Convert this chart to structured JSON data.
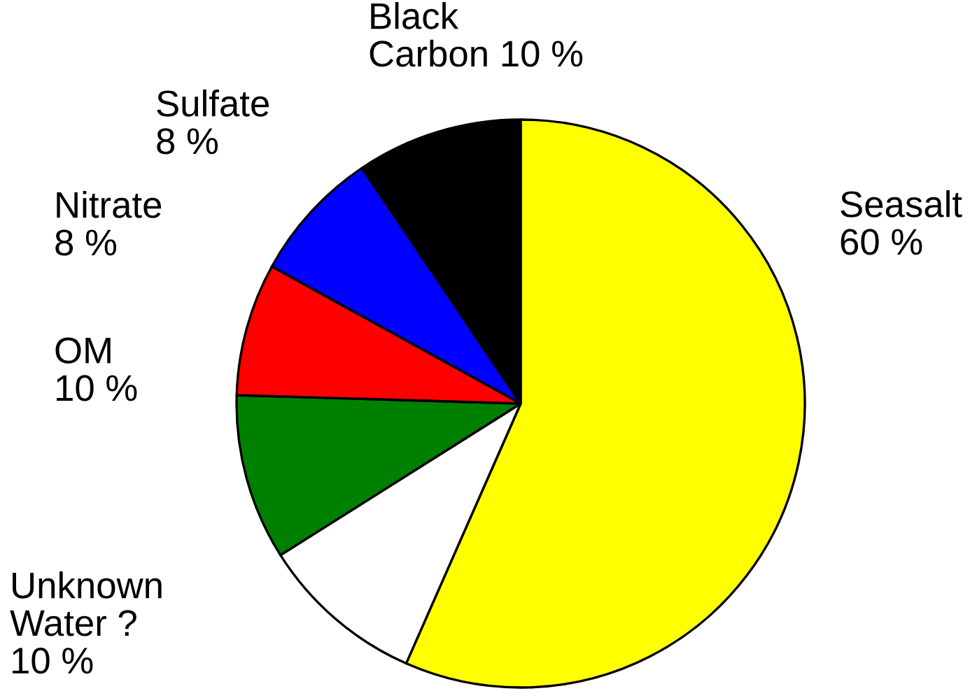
{
  "chart_data": {
    "type": "pie",
    "categories": [
      "Seasalt",
      "Unknown\nWater ?",
      "OM",
      "Nitrate",
      "Sulfate",
      "Black\nCarbon"
    ],
    "values": [
      60,
      10,
      10,
      8,
      8,
      10
    ],
    "value_labels": [
      "60 %",
      "10 %",
      "10 %",
      "8 %",
      "8 %",
      "10 %"
    ],
    "colors": [
      "#ffff00",
      "#ffffff",
      "#008000",
      "#ff0000",
      "#0000ff",
      "#000000"
    ],
    "legend": false
  }
}
